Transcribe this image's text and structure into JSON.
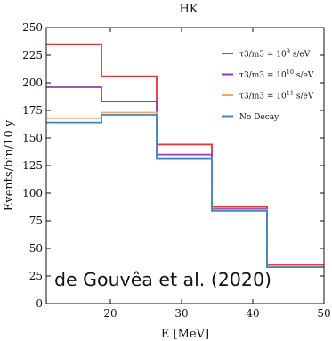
{
  "chart_data": {
    "type": "line",
    "title": "HK",
    "xlabel": "E [MeV]",
    "ylabel": "Events/bin/10 y",
    "xlim": [
      11,
      50
    ],
    "ylim": [
      0,
      250
    ],
    "x_ticks": [
      20,
      30,
      40,
      50
    ],
    "y_ticks": [
      0,
      25,
      50,
      75,
      100,
      125,
      150,
      175,
      200,
      225,
      250
    ],
    "bin_edges": [
      11,
      18.75,
      26.5,
      34.25,
      42,
      50
    ],
    "series": [
      {
        "name": "τ3/m3 = 10^9 s/eV",
        "label_main": "τ3/m3 = 10",
        "label_exp": "9",
        "label_unit": " s/eV",
        "color": "#e8323c",
        "values": [
          235,
          206,
          144,
          88,
          35
        ]
      },
      {
        "name": "τ3/m3 = 10^10 s/eV",
        "label_main": "τ3/m3 = 10",
        "label_exp": "10",
        "label_unit": " s/eV",
        "color": "#9b38b5",
        "values": [
          196,
          183,
          135,
          86,
          34
        ]
      },
      {
        "name": "τ3/m3 = 10^11 s/eV",
        "label_main": "τ3/m3 = 10",
        "label_exp": "11",
        "label_unit": " s/eV",
        "color": "#f5a95e",
        "values": [
          168,
          173,
          132,
          85,
          34
        ]
      },
      {
        "name": "No Decay",
        "label_main": "No Decay",
        "label_exp": "",
        "label_unit": "",
        "color": "#3a87c8",
        "values": [
          164,
          171,
          131,
          84,
          33
        ]
      }
    ],
    "grid": false,
    "legend_position": "top-right",
    "annotation": {
      "text": "de Gouvêa et al. (2020)",
      "color": "#2020b0"
    }
  }
}
